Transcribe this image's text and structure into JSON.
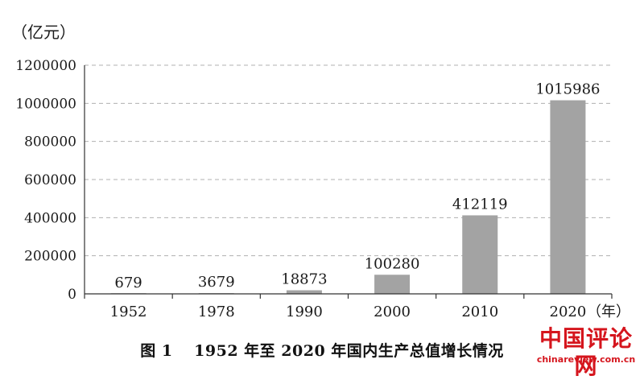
{
  "chart_data": {
    "type": "bar",
    "title": "",
    "ylabel": "（亿元）",
    "xlabel": "（年）",
    "categories": [
      "1952",
      "1978",
      "1990",
      "2000",
      "2010",
      "2020"
    ],
    "values": [
      679,
      3679,
      18873,
      100280,
      412119,
      1015986
    ],
    "data_labels": [
      "679",
      "3679",
      "18873",
      "100280",
      "412119",
      "1015986"
    ],
    "ylim": [
      0,
      1200000
    ],
    "yticks": [
      0,
      200000,
      400000,
      600000,
      800000,
      1000000,
      1200000
    ],
    "ytick_labels": [
      "0",
      "200000",
      "400000",
      "600000",
      "800000",
      "1000000",
      "1200000"
    ],
    "grid": true,
    "legend": "none",
    "bar_color": "#a3a3a3",
    "grid_color": "#b0b0b0"
  },
  "caption": "图 1　 1952 年至 2020 年国内生产总值增长情况",
  "watermark": {
    "main": "中国评论网",
    "url": "chinareview.com.cn",
    "color": "#d5151d"
  }
}
